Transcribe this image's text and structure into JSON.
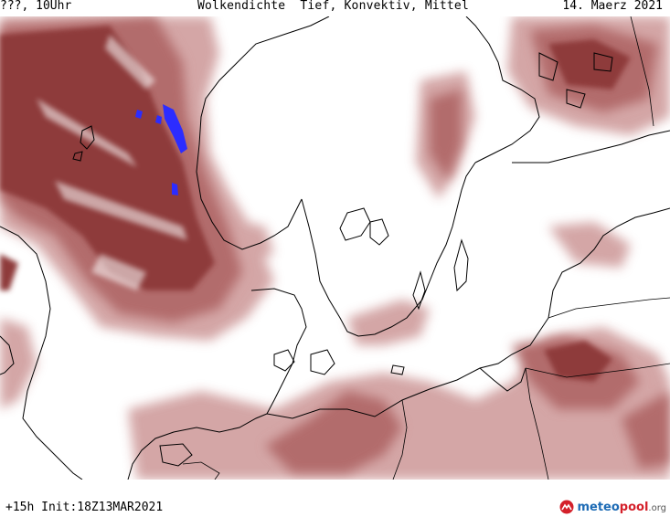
{
  "header": {
    "left_label": "???, 10Uhr",
    "title": "Wolkendichte  Tief, Konvektiv, Mittel",
    "date": "14. Maerz 2021"
  },
  "footer": {
    "run_info": "+15h Init:18Z13MAR2021"
  },
  "logo": {
    "part1": "meteo",
    "part2": "pool",
    "part3": ".org"
  },
  "colors": {
    "cloud_dense": "#8c3c3c",
    "cloud_medium": "#b06a6a",
    "cloud_light": "#d4a6a6",
    "convective_blue": "#2c2cff",
    "coastline": "#000000"
  },
  "map": {
    "region": "North Sea / Scandinavia / Baltic",
    "field": "cloud cover (low, convective, mid)"
  }
}
